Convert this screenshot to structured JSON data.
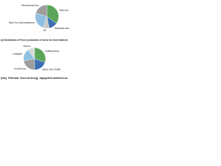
{
  "chart_data": [
    {
      "type": "pie",
      "title": "(a) Distribution of French production of steels for heat treatment",
      "categories": [
        "Steel for Ctrl",
        "Stainless steel",
        "Oil",
        "Steel for heat treatment",
        "Mechanical tool"
      ],
      "values": [
        35,
        12,
        8,
        25,
        20
      ],
      "colors": [
        "#5ba55b",
        "#3d6fb4",
        "#c8c8c8",
        "#8fbfe0",
        "#9e9e9e"
      ]
    },
    {
      "type": "pie",
      "title": "(b) Heat forming applications",
      "categories": [
        "Bolts/screws",
        "Axles and shafts",
        "Gearboxes",
        "Linkages",
        "Others"
      ],
      "values": [
        30,
        20,
        22,
        18,
        10
      ],
      "colors": [
        "#5ba55b",
        "#3d6fb4",
        "#9e9e9e",
        "#8fbfe0",
        "#d8d8d8"
      ]
    }
  ]
}
